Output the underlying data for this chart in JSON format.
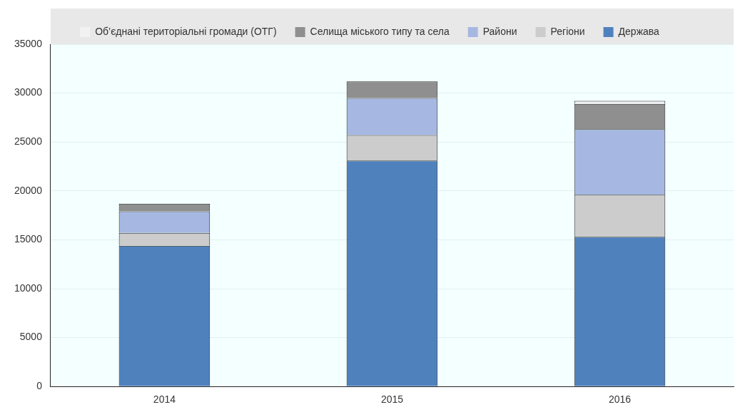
{
  "chart_data": {
    "type": "bar",
    "stacked": true,
    "categories": [
      "2014",
      "2015",
      "2016"
    ],
    "series": [
      {
        "name": "Держава",
        "color": "#4f81bd",
        "values": [
          14400,
          23100,
          15300
        ]
      },
      {
        "name": "Регіони",
        "color": "#cccccc",
        "values": [
          1300,
          2600,
          4300
        ]
      },
      {
        "name": "Райони",
        "color": "#a6b8e2",
        "values": [
          2200,
          3800,
          6700
        ]
      },
      {
        "name": "Селища міського типу та села",
        "color": "#8f8f8f",
        "values": [
          800,
          1700,
          2600
        ]
      },
      {
        "name": "Об’єднані територіальні громади (ОТГ)",
        "color": "#f2f2f2",
        "values": [
          null,
          null,
          300
        ]
      }
    ],
    "ylim": [
      0,
      35000
    ],
    "yticks": [
      0,
      5000,
      10000,
      15000,
      20000,
      25000,
      30000,
      35000
    ],
    "grid": "y",
    "legend": "top"
  }
}
